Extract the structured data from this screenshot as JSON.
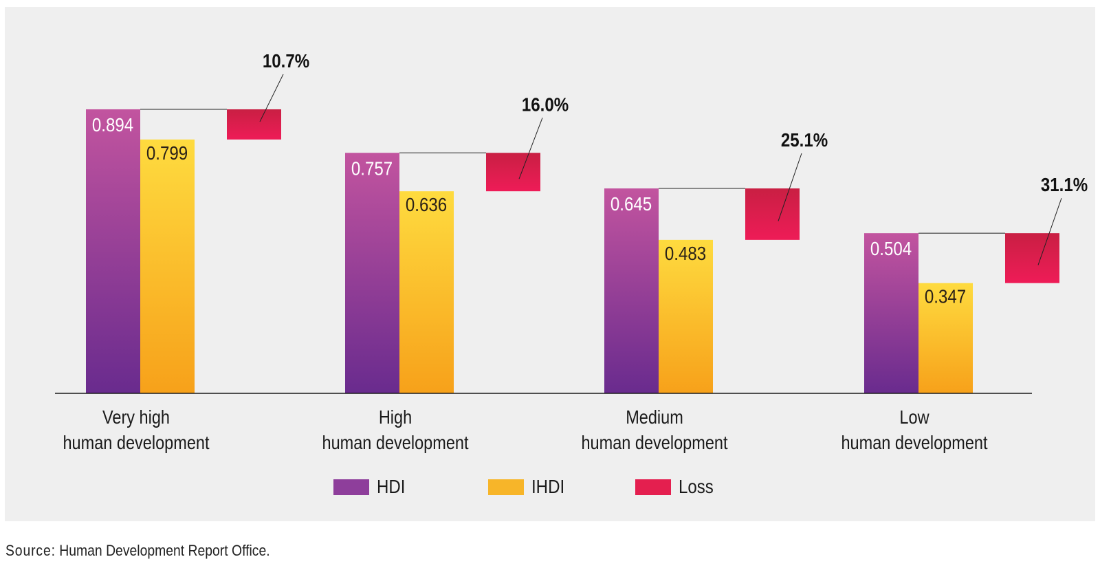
{
  "chart_data": {
    "type": "bar",
    "title": "",
    "xlabel": "",
    "ylabel": "",
    "ylim": [
      0,
      1
    ],
    "groups": [
      {
        "line1": "Very high",
        "line2": "human development",
        "hdi": 0.894,
        "hdi_label": "0.894",
        "ihdi": 0.799,
        "ihdi_label": "0.799",
        "loss_label": "10.7%"
      },
      {
        "line1": "High",
        "line2": "human development",
        "hdi": 0.757,
        "hdi_label": "0.757",
        "ihdi": 0.636,
        "ihdi_label": "0.636",
        "loss_label": "16.0%"
      },
      {
        "line1": "Medium",
        "line2": "human development",
        "hdi": 0.645,
        "hdi_label": "0.645",
        "ihdi": 0.483,
        "ihdi_label": "0.483",
        "loss_label": "25.1%"
      },
      {
        "line1": "Low",
        "line2": "human development",
        "hdi": 0.504,
        "hdi_label": "0.504",
        "ihdi": 0.347,
        "ihdi_label": "0.347",
        "loss_label": "31.1%"
      }
    ],
    "legend": [
      {
        "key": "hdi",
        "label": "HDI",
        "color": "#8e3e9b"
      },
      {
        "key": "ihdi",
        "label": "IHDI",
        "color": "#f7b529"
      },
      {
        "key": "loss",
        "label": "Loss",
        "color": "#e41f4f"
      }
    ],
    "legend_position": "bottom-center"
  },
  "colors": {
    "panel_bg": "#efefef",
    "hdi_top": "#c2549f",
    "hdi_bottom": "#692b8e",
    "ihdi_top": "#fedb3f",
    "ihdi_bottom": "#f7a11a",
    "loss_top": "#c91f43",
    "loss_bottom": "#ee1c57"
  },
  "source": {
    "label": "Source:",
    "text": "Human Development Report Office."
  }
}
